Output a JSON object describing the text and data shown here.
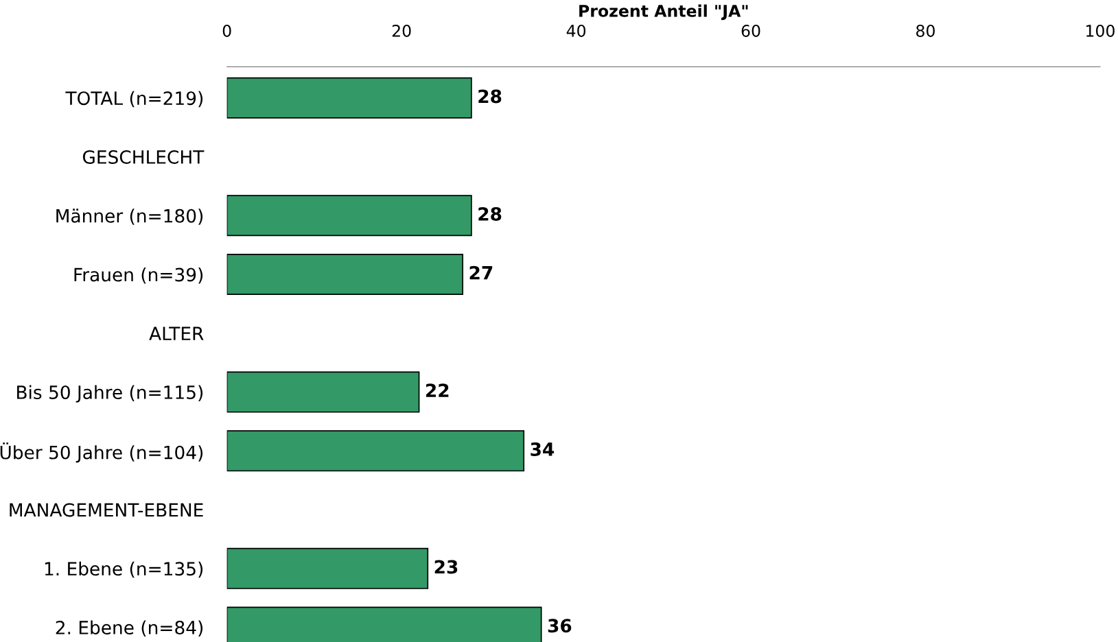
{
  "chart_data": {
    "type": "bar",
    "orientation": "horizontal",
    "xlabel": "Prozent Anteil \"JA\"",
    "categories": [
      "TOTAL (n=219)",
      "GESCHLECHT",
      "Männer (n=180)",
      "Frauen (n=39)",
      "ALTER",
      "Bis 50 Jahre (n=115)",
      "Über 50 Jahre (n=104)",
      "MANAGEMENT-EBENE",
      "1. Ebene (n=135)",
      "2. Ebene (n=84)"
    ],
    "values": [
      28,
      null,
      28,
      27,
      null,
      22,
      34,
      null,
      23,
      36
    ],
    "color": "#339966",
    "xlim": [
      0,
      100
    ],
    "xticks": [
      0,
      20,
      40,
      60,
      80,
      100
    ],
    "data_labels": true,
    "grid": false,
    "legend": false
  }
}
